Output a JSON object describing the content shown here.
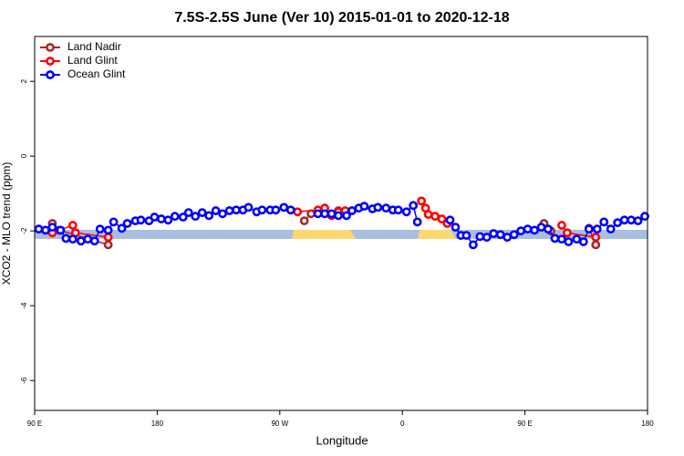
{
  "chart_data": {
    "type": "line",
    "title": "7.5S-2.5S June (Ver 10)   2015-01-01 to 2020-12-18",
    "x_label": "Longitude",
    "y_label": "XCO2 - MLO trend (ppm)",
    "xlim": [
      90,
      540
    ],
    "ylim": [
      -6.8,
      3.2
    ],
    "xticks": [
      {
        "value": 90,
        "label": "90 E"
      },
      180,
      {
        "value": 270,
        "label": "90 W"
      },
      {
        "value": 360,
        "label": "0"
      },
      {
        "value": 450,
        "label": "90 E"
      },
      {
        "value": 540,
        "label": "180"
      }
    ],
    "yticks": [
      2,
      0,
      -2,
      -4,
      -6
    ],
    "legend": "top-left",
    "series": [
      {
        "name": "Land Nadir",
        "color": "#a52a2a",
        "x": [
          103,
          108,
          144,
          null,
          288,
          293,
          313,
          null,
          464,
          469,
          null,
          497,
          502
        ],
        "values": [
          -1.8,
          -1.98,
          -2.37,
          null,
          -1.73,
          -1.54,
          -1.46,
          null,
          -1.8,
          -2.0,
          null,
          -1.93,
          -2.37
        ]
      },
      {
        "name": "Land Glint",
        "color": "#ff0000",
        "x": [
          103,
          118,
          120,
          144,
          null,
          283,
          298,
          303,
          308,
          313,
          318,
          null,
          374,
          377,
          379,
          384,
          389,
          393,
          null,
          477,
          481,
          502
        ],
        "values": [
          -2.05,
          -1.85,
          -2.05,
          -2.17,
          null,
          -1.49,
          -1.44,
          -1.39,
          -1.59,
          -1.49,
          -1.46,
          null,
          -1.2,
          -1.39,
          -1.56,
          -1.61,
          -1.68,
          -1.8,
          null,
          -1.85,
          -2.05,
          -2.17
        ]
      },
      {
        "name": "Ocean Glint",
        "color": "#0000ff",
        "x": [
          93,
          98,
          103,
          109,
          113,
          118,
          124,
          129,
          134,
          138,
          144,
          148,
          154,
          158,
          164,
          168,
          174,
          178,
          183,
          188,
          193,
          199,
          203,
          208,
          213,
          218,
          223,
          228,
          233,
          238,
          243,
          247,
          253,
          257,
          263,
          267,
          273,
          278,
          null,
          298,
          303,
          308,
          313,
          319,
          323,
          328,
          332,
          338,
          342,
          348,
          353,
          357,
          363,
          368,
          371,
          null,
          395,
          399,
          403,
          407,
          412,
          417,
          422,
          427,
          432,
          437,
          442,
          447,
          452,
          457,
          462,
          467,
          472,
          477,
          482,
          488,
          493,
          497,
          503,
          508,
          513,
          518,
          523,
          528,
          533,
          538
        ],
        "values": [
          -1.95,
          -1.98,
          -1.9,
          -1.98,
          -2.2,
          -2.22,
          -2.27,
          -2.22,
          -2.27,
          -1.95,
          -1.98,
          -1.76,
          -1.93,
          -1.8,
          -1.73,
          -1.71,
          -1.73,
          -1.63,
          -1.68,
          -1.71,
          -1.61,
          -1.63,
          -1.51,
          -1.61,
          -1.51,
          -1.59,
          -1.46,
          -1.54,
          -1.46,
          -1.44,
          -1.44,
          -1.37,
          -1.49,
          -1.44,
          -1.44,
          -1.44,
          -1.37,
          -1.44,
          null,
          -1.54,
          -1.54,
          -1.54,
          -1.59,
          -1.59,
          -1.46,
          -1.39,
          -1.34,
          -1.41,
          -1.37,
          -1.39,
          -1.44,
          -1.44,
          -1.49,
          -1.32,
          -1.76,
          null,
          -1.71,
          -1.9,
          -2.12,
          -2.12,
          -2.37,
          -2.15,
          -2.17,
          -2.07,
          -2.1,
          -2.17,
          -2.1,
          -2.0,
          -1.95,
          -1.98,
          -1.9,
          -1.95,
          -2.2,
          -2.22,
          -2.29,
          -2.22,
          -2.29,
          -1.95,
          -1.95,
          -1.76,
          -1.95,
          -1.78,
          -1.71,
          -1.71,
          -1.73,
          -1.61
        ]
      }
    ]
  }
}
